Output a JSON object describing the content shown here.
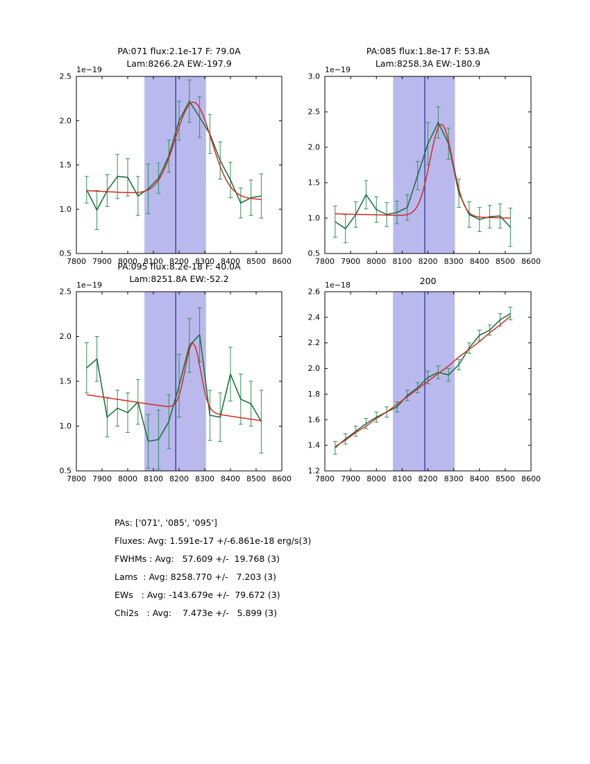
{
  "style": {
    "background": "#ffffff",
    "band_color": "#b9b9ee",
    "vline_color": "#26268c",
    "data_color": "#116b38",
    "errbar_color": "#2f9150",
    "fit_color": "#d12b20",
    "axis_color": "#000000"
  },
  "chart_data": [
    {
      "type": "errorbar-line",
      "name": "subplot-pa071",
      "title": [
        "PA:071 flux:2.1e-17 F: 79.0A",
        "Lam:8266.2A EW:-197.9"
      ],
      "scale_label": "1e−19",
      "xlim": [
        7800,
        8600
      ],
      "ylim": [
        0.5,
        2.5
      ],
      "xticks": [
        7800,
        7900,
        8000,
        8100,
        8200,
        8300,
        8400,
        8500,
        8600
      ],
      "xtick_labels": [
        "7800",
        "7900",
        "8000",
        "8100",
        "8200",
        "8300",
        "8400",
        "8500",
        "8600"
      ],
      "yticks": [
        0.5,
        1.0,
        1.5,
        2.0,
        2.5
      ],
      "ytick_labels": [
        "0.5",
        "1.0",
        "1.5",
        "2.0",
        "2.5"
      ],
      "band": [
        8065,
        8305
      ],
      "vline": 8187,
      "x": [
        7840,
        7880,
        7920,
        7960,
        8000,
        8040,
        8080,
        8120,
        8160,
        8200,
        8240,
        8280,
        8320,
        8360,
        8400,
        8440,
        8480,
        8520
      ],
      "y": [
        1.22,
        0.99,
        1.21,
        1.37,
        1.36,
        1.15,
        1.23,
        1.35,
        1.6,
        2.0,
        2.22,
        2.04,
        1.85,
        1.55,
        1.33,
        1.07,
        1.13,
        1.15
      ],
      "yerr": [
        0.15,
        0.22,
        0.18,
        0.25,
        0.21,
        0.22,
        0.28,
        0.17,
        0.18,
        0.22,
        0.24,
        0.23,
        0.22,
        0.21,
        0.2,
        0.17,
        0.2,
        0.25
      ],
      "fit": {
        "type": "gaussian",
        "range": [
          7840,
          8520
        ],
        "base": [
          1.21,
          1.11
        ],
        "amp": 1.06,
        "center": 8256,
        "sigma": 70
      }
    },
    {
      "type": "errorbar-line",
      "name": "subplot-pa085",
      "title": [
        "PA:085 flux:1.8e-17 F: 53.8A",
        "Lam:8258.3A EW:-180.9"
      ],
      "scale_label": "1e−19",
      "xlim": [
        7800,
        8600
      ],
      "ylim": [
        0.5,
        3.0
      ],
      "xticks": [
        7800,
        7900,
        8000,
        8100,
        8200,
        8300,
        8400,
        8500,
        8600
      ],
      "xtick_labels": [
        "7800",
        "7900",
        "8000",
        "8100",
        "8200",
        "8300",
        "8400",
        "8500",
        "8600"
      ],
      "yticks": [
        0.5,
        1.0,
        1.5,
        2.0,
        2.5,
        3.0
      ],
      "ytick_labels": [
        "0.5",
        "1.0",
        "1.5",
        "2.0",
        "2.5",
        "3.0"
      ],
      "band": [
        8065,
        8305
      ],
      "vline": 8188,
      "x": [
        7840,
        7880,
        7920,
        7960,
        8000,
        8040,
        8080,
        8120,
        8160,
        8200,
        8240,
        8280,
        8320,
        8360,
        8400,
        8440,
        8480,
        8520
      ],
      "y": [
        0.95,
        0.85,
        1.05,
        1.33,
        1.12,
        1.05,
        1.08,
        1.15,
        1.6,
        2.05,
        2.35,
        2.05,
        1.35,
        1.05,
        0.98,
        1.02,
        1.03,
        0.87
      ],
      "yerr": [
        0.22,
        0.2,
        0.18,
        0.2,
        0.18,
        0.17,
        0.16,
        0.18,
        0.2,
        0.3,
        0.22,
        0.22,
        0.2,
        0.18,
        0.17,
        0.16,
        0.17,
        0.27
      ],
      "fit": {
        "type": "gaussian",
        "range": [
          7840,
          8520
        ],
        "base": [
          1.06,
          1.0
        ],
        "amp": 1.3,
        "center": 8252,
        "sigma": 44
      }
    },
    {
      "type": "errorbar-line",
      "name": "subplot-pa095",
      "title": [
        "PA:095 flux:8.2e-18 F: 40.0A",
        "Lam:8251.8A EW:-52.2"
      ],
      "scale_label": "1e−19",
      "xlim": [
        7800,
        8600
      ],
      "ylim": [
        0.5,
        2.5
      ],
      "xticks": [
        7800,
        7900,
        8000,
        8100,
        8200,
        8300,
        8400,
        8500,
        8600
      ],
      "xtick_labels": [
        "7800",
        "7900",
        "8000",
        "8100",
        "8200",
        "8300",
        "8400",
        "8500",
        "8600"
      ],
      "yticks": [
        0.5,
        1.0,
        1.5,
        2.0,
        2.5
      ],
      "ytick_labels": [
        "0.5",
        "1.0",
        "1.5",
        "2.0",
        "2.5"
      ],
      "band": [
        8065,
        8305
      ],
      "vline": 8187,
      "x": [
        7840,
        7880,
        7920,
        7960,
        8000,
        8040,
        8080,
        8120,
        8160,
        8200,
        8240,
        8280,
        8320,
        8360,
        8400,
        8440,
        8480,
        8520
      ],
      "y": [
        1.65,
        1.75,
        1.1,
        1.2,
        1.15,
        1.27,
        0.83,
        0.85,
        1.05,
        1.45,
        1.9,
        2.02,
        1.12,
        1.1,
        1.58,
        1.3,
        1.25,
        1.05
      ],
      "yerr": [
        0.28,
        0.25,
        0.22,
        0.2,
        0.22,
        0.25,
        0.3,
        0.33,
        0.3,
        0.35,
        0.3,
        0.3,
        0.28,
        0.27,
        0.3,
        0.28,
        0.25,
        0.35
      ],
      "fit": {
        "type": "gaussian",
        "range": [
          7840,
          8520
        ],
        "base": [
          1.35,
          1.06
        ],
        "amp": 0.75,
        "center": 8254,
        "sigma": 30
      }
    },
    {
      "type": "errorbar-line",
      "name": "subplot-continuum-200",
      "title": [
        "200"
      ],
      "scale_label": "1e−18",
      "xlim": [
        7800,
        8600
      ],
      "ylim": [
        1.2,
        2.6
      ],
      "xticks": [
        7800,
        7900,
        8000,
        8100,
        8200,
        8300,
        8400,
        8500,
        8600
      ],
      "xtick_labels": [
        "7800",
        "7900",
        "8000",
        "8100",
        "8200",
        "8300",
        "8400",
        "8500",
        "8600"
      ],
      "yticks": [
        1.2,
        1.4,
        1.6,
        1.8,
        2.0,
        2.2,
        2.4,
        2.6
      ],
      "ytick_labels": [
        "1.2",
        "1.4",
        "1.6",
        "1.8",
        "2.0",
        "2.2",
        "2.4",
        "2.6"
      ],
      "band": [
        8064,
        8304
      ],
      "vline": 8188,
      "x": [
        7840,
        7880,
        7920,
        7960,
        8000,
        8040,
        8080,
        8120,
        8160,
        8200,
        8240,
        8280,
        8320,
        8360,
        8400,
        8440,
        8480,
        8520
      ],
      "y": [
        1.38,
        1.45,
        1.51,
        1.57,
        1.62,
        1.66,
        1.7,
        1.79,
        1.85,
        1.93,
        1.97,
        1.95,
        2.03,
        2.16,
        2.26,
        2.3,
        2.38,
        2.43
      ],
      "yerr": [
        0.05,
        0.04,
        0.04,
        0.04,
        0.04,
        0.04,
        0.04,
        0.04,
        0.04,
        0.05,
        0.05,
        0.05,
        0.04,
        0.04,
        0.04,
        0.04,
        0.05,
        0.05
      ],
      "fit": {
        "type": "points",
        "x": [
          7840,
          7880,
          7920,
          7960,
          8000,
          8040,
          8080,
          8120,
          8160,
          8200,
          8240,
          8280,
          8320,
          8360,
          8400,
          8440,
          8480,
          8520
        ],
        "y": [
          1.39,
          1.44,
          1.5,
          1.55,
          1.61,
          1.66,
          1.72,
          1.78,
          1.84,
          1.9,
          1.96,
          2.02,
          2.09,
          2.15,
          2.21,
          2.28,
          2.34,
          2.41
        ]
      }
    }
  ],
  "summary": {
    "lines": [
      "PAs: ['071', '085', '095']",
      "Fluxes: Avg: 1.591e-17 +/-6.861e-18 erg/s(3)",
      "FWHMs : Avg:   57.609 +/-  19.768 (3)",
      "Lams  : Avg: 8258.770 +/-   7.203 (3)",
      "EWs   : Avg: -143.679e +/-  79.672 (3)",
      "Chi2s   : Avg:    7.473e +/-   5.899 (3)"
    ]
  }
}
